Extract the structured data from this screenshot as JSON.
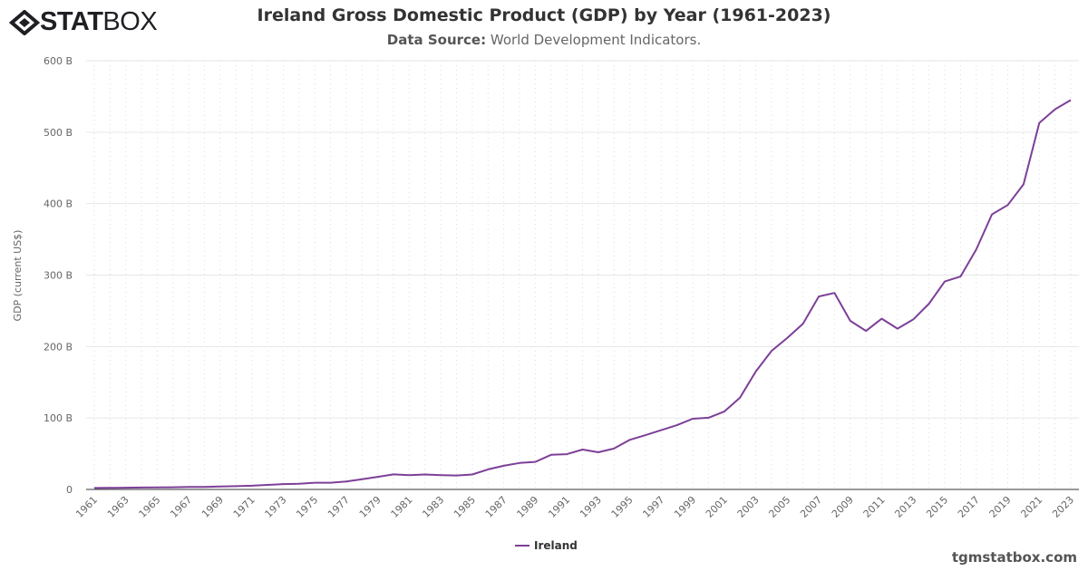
{
  "logo": {
    "bold": "STAT",
    "light": "BOX"
  },
  "chart_data": {
    "type": "line",
    "title": "Ireland Gross Domestic Product (GDP) by Year (1961-2023)",
    "subtitle_label": "Data Source:",
    "subtitle_text": " World Development Indicators.",
    "ylabel": "GDP (current US$)",
    "xlabel": "",
    "ylim": [
      0,
      600
    ],
    "yticks": [
      {
        "v": 0,
        "label": "0"
      },
      {
        "v": 100,
        "label": "100 B"
      },
      {
        "v": 200,
        "label": "200 B"
      },
      {
        "v": 300,
        "label": "300 B"
      },
      {
        "v": 400,
        "label": "400 B"
      },
      {
        "v": 500,
        "label": "500 B"
      },
      {
        "v": 600,
        "label": "600 B"
      }
    ],
    "grid": true,
    "legend_position": "bottom",
    "color": "#7d3f98",
    "series": [
      {
        "name": "Ireland",
        "x_start": 1961,
        "values": [
          2.0,
          2.2,
          2.4,
          2.7,
          2.9,
          3.1,
          3.4,
          3.5,
          4.0,
          4.6,
          5.2,
          6.3,
          7.5,
          7.9,
          9.4,
          9.4,
          11.1,
          14.2,
          17.6,
          21.0,
          20.0,
          20.9,
          20.0,
          19.5,
          20.9,
          28.0,
          33.1,
          37.0,
          38.6,
          48.5,
          49.4,
          55.8,
          52.0,
          57.2,
          69.4,
          76.0,
          83.0,
          90.0,
          99.0,
          100.3,
          109.0,
          128.5,
          165.0,
          194.0,
          212.0,
          232.0,
          270.0,
          275.0,
          236.0,
          221.9,
          239.0,
          225.0,
          238.0,
          260.0,
          291.0,
          298.0,
          336.0,
          385.0,
          398.0,
          427.0,
          513.0,
          532.0,
          545.0
        ]
      }
    ]
  },
  "footer": "tgmstatbox.com"
}
